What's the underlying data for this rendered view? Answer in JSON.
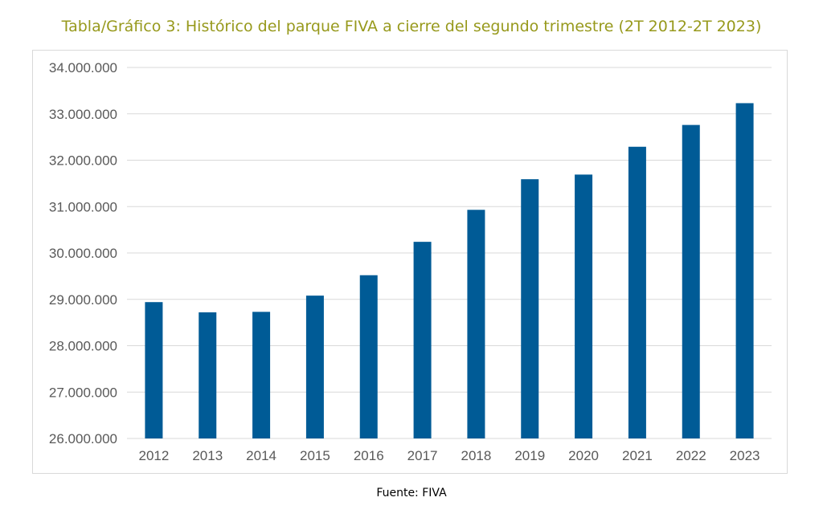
{
  "chart_title": "Tabla/Gráfico 3: Histórico del parque FIVA a cierre del segundo trimestre (2T 2012-2T 2023)",
  "source_note": "Fuente: FIVA",
  "colors": {
    "bar": "#005b96",
    "title": "#97991c",
    "grid": "#d9d9d9",
    "axis_text": "#595959"
  },
  "chart_data": {
    "type": "bar",
    "categories": [
      "2012",
      "2013",
      "2014",
      "2015",
      "2016",
      "2017",
      "2018",
      "2019",
      "2020",
      "2021",
      "2022",
      "2023"
    ],
    "series": [
      {
        "values": [
          28940000,
          28720000,
          28730000,
          29080000,
          29520000,
          30240000,
          30930000,
          31590000,
          31690000,
          32290000,
          32760000,
          33230000
        ]
      }
    ],
    "ylim": [
      26000000,
      34000000
    ],
    "yticks": [
      26000000,
      27000000,
      28000000,
      29000000,
      30000000,
      31000000,
      32000000,
      33000000,
      34000000
    ],
    "ytick_labels": [
      "26.000.000",
      "27.000.000",
      "28.000.000",
      "29.000.000",
      "30.000.000",
      "31.000.000",
      "32.000.000",
      "33.000.000",
      "34.000.000"
    ],
    "grid": true,
    "legend": false
  }
}
